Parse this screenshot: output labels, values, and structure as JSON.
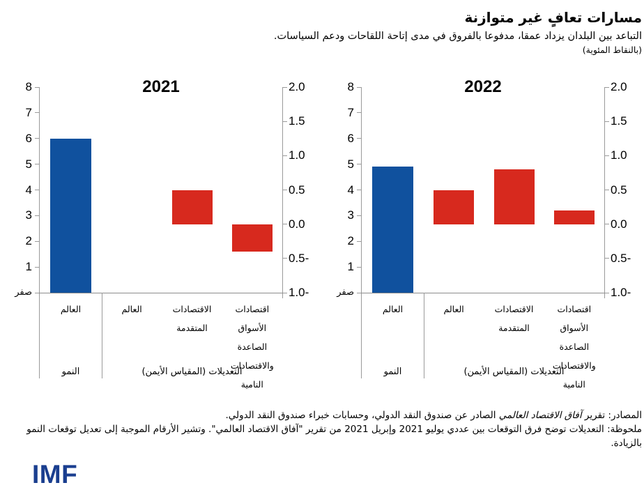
{
  "header": {
    "title": "مسارات تعافٍ غير متوازنة",
    "subtitle": "التباعد بين البلدان يزداد عمقا، مدفوعا بالفروق في مدى إتاحة اللقاحات ودعم السياسات.",
    "units": "(بالنقاط المئوية)"
  },
  "colors": {
    "growth_bar": "#10519e",
    "adjustment_bar": "#d7291e",
    "axis_line": "#9a9a9a",
    "logo": "#1a3e8f"
  },
  "chart_data": [
    {
      "type": "bar",
      "title": "2021",
      "left_axis": {
        "range": [
          0,
          8
        ],
        "tick_labels": [
          "8",
          "7",
          "6",
          "5",
          "4",
          "3",
          "2",
          "1",
          "صفر"
        ]
      },
      "right_axis": {
        "range": [
          -1.0,
          2.0
        ],
        "tick_labels": [
          "2.0",
          "1.5",
          "1.0",
          "0.5",
          "0.0",
          "0.5-",
          "1.0-"
        ]
      },
      "growth_panel": {
        "panel_label": "النمو",
        "axis": "left",
        "category_lines": [
          "العالم"
        ],
        "value": 6.0
      },
      "adjustments_panel": {
        "panel_label": "التعديلات (المقياس الأيمن)",
        "axis": "right",
        "categories_lines": [
          [
            "العالم"
          ],
          [
            "الاقتصادات",
            "المتقدمة"
          ],
          [
            "اقتصادات الأسواق",
            "الصاعدة",
            "والاقتصادات النامية"
          ]
        ],
        "values": [
          0.0,
          0.5,
          -0.4
        ]
      }
    },
    {
      "type": "bar",
      "title": "2022",
      "left_axis": {
        "range": [
          0,
          8
        ],
        "tick_labels": [
          "8",
          "7",
          "6",
          "5",
          "4",
          "3",
          "2",
          "1",
          "صفر"
        ]
      },
      "right_axis": {
        "range": [
          -1.0,
          2.0
        ],
        "tick_labels": [
          "2.0",
          "1.5",
          "1.0",
          "0.5",
          "0.0",
          "0.5-",
          "1.0-"
        ]
      },
      "growth_panel": {
        "panel_label": "النمو",
        "axis": "left",
        "category_lines": [
          "العالم"
        ],
        "value": 4.9
      },
      "adjustments_panel": {
        "panel_label": "التعديلات (المقياس الأيمن)",
        "axis": "right",
        "categories_lines": [
          [
            "العالم"
          ],
          [
            "الاقتصادات",
            "المتقدمة"
          ],
          [
            "اقتصادات الأسواق",
            "الصاعدة",
            "والاقتصادات النامية"
          ]
        ],
        "values": [
          0.5,
          0.8,
          0.2
        ]
      }
    }
  ],
  "footer": {
    "source_prefix": "المصادر: تقرير ",
    "source_italic": "آفاق الاقتصاد العالمي",
    "source_suffix": " الصادر عن صندوق النقد الدولي، وحسابات خبراء صندوق النقد الدولي.",
    "note": "ملحوظة: التعديلات توضح فرق التوقعات بين عددي يوليو 2021 وإبريل 2021 من تقرير \"آفاق الاقتصاد العالمي\". وتشير الأرقام الموجبة إلى تعديل توقعات النمو بالزيادة.",
    "logo": "IMF"
  }
}
